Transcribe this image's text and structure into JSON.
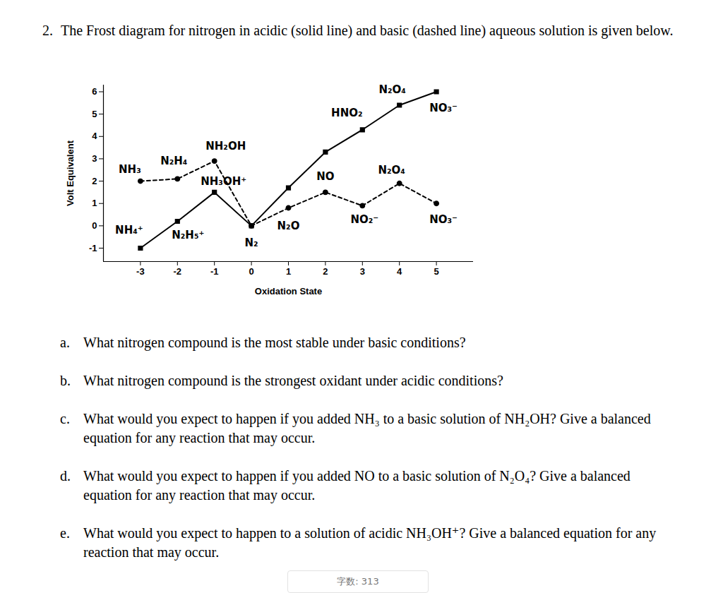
{
  "question": {
    "number": "2.",
    "text": "The Frost diagram for nitrogen in acidic (solid line) and basic (dashed line) aqueous solution is given below."
  },
  "chart_data": {
    "type": "line",
    "x_label": "Oxidation State",
    "y_label": "Volt Equivalent",
    "xlim": [
      -4,
      6
    ],
    "ylim": [
      -1.6,
      6.3
    ],
    "xticks": [
      -3,
      -2,
      -1,
      0,
      1,
      2,
      3,
      4,
      5
    ],
    "yticks": [
      -1,
      0,
      1,
      2,
      3,
      4,
      5,
      6
    ],
    "x": [
      -3,
      -2,
      -1,
      0,
      1,
      2,
      3,
      4,
      5
    ],
    "series": [
      {
        "color": "#000000",
        "line_style": "solid",
        "marker": "square",
        "values": [
          -1.0,
          0.2,
          1.5,
          0,
          1.7,
          3.3,
          4.3,
          5.4,
          6.0
        ],
        "point_labels": [
          "NH₄⁺",
          "N₂H₅⁺",
          "NH₃OH⁺",
          "N₂",
          null,
          null,
          "HNO₂",
          "N₂O₄",
          "NO₃⁻"
        ]
      },
      {
        "color": "#000000",
        "line_style": "dashed",
        "marker": "circle",
        "values": [
          2.0,
          2.1,
          2.9,
          0,
          0.8,
          1.5,
          0.9,
          1.9,
          1.0
        ],
        "point_labels": [
          "NH₃",
          "N₂H₄",
          "NH₂OH",
          null,
          "N₂O",
          "NO",
          "NO₂⁻",
          "N₂O₄",
          "NO₃⁻"
        ]
      }
    ]
  },
  "parts": [
    {
      "letter": "a.",
      "text": "What nitrogen compound is the most stable under basic conditions?"
    },
    {
      "letter": "b.",
      "text": "What nitrogen compound is the strongest oxidant under acidic conditions?"
    },
    {
      "letter": "c.",
      "text": "What would you expect to happen if you added NH₃ to a basic solution of NH₂OH? Give a balanced equation for any reaction that may occur."
    },
    {
      "letter": "d.",
      "text": "What would you expect to happen if you added NO to a basic solution of N₂O₄? Give a balanced equation for any reaction that may occur."
    },
    {
      "letter": "e.",
      "text": "What would you expect to happen to a solution of acidic NH₃OH⁺? Give a balanced equation for any reaction that may occur."
    }
  ],
  "footer": "字数: 313"
}
